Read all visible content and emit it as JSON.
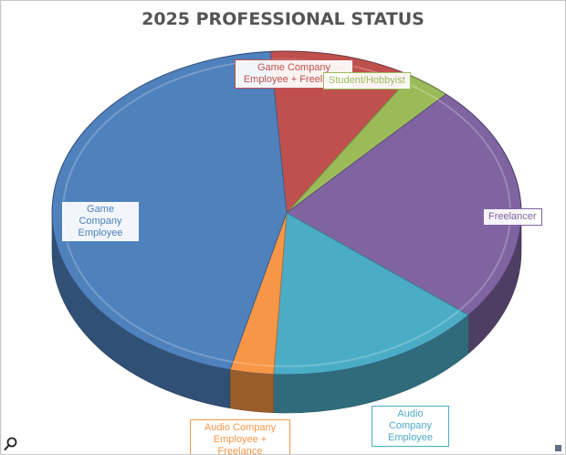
{
  "icons": {
    "zoom": "magnifier-icon"
  },
  "chart_data": {
    "type": "pie",
    "title": "2025 PROFESSIONAL STATUS",
    "style": "3d-pie",
    "slices": [
      {
        "label": "Game Company Employee + Freelance",
        "value": 10,
        "color": "#c0504d"
      },
      {
        "label": "Student/Hobbyist",
        "value": 3,
        "color": "#9bbb59"
      },
      {
        "label": "Freelancer",
        "value": 24,
        "color": "#8064a2"
      },
      {
        "label": "Audio Company Employee",
        "value": 15,
        "color": "#4bacc6"
      },
      {
        "label": "Audio Company Employee + Freelance",
        "value": 3,
        "color": "#f79646"
      },
      {
        "label": "Game Company Employee",
        "value": 45,
        "color": "#4f81bd"
      }
    ]
  }
}
